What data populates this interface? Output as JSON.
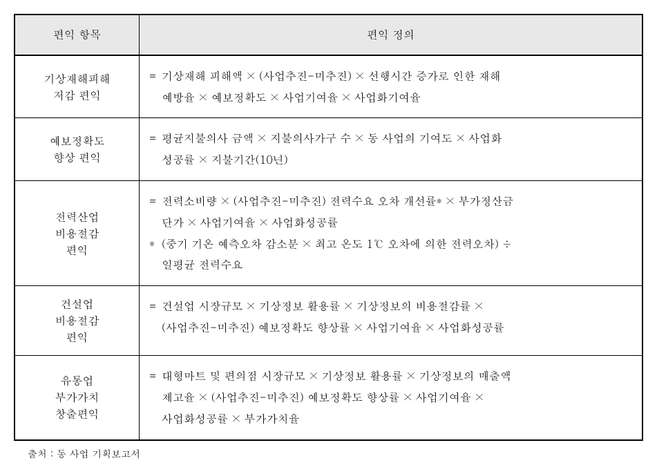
{
  "table": {
    "header": {
      "col1": "편익 항목",
      "col2": "편익 정의"
    },
    "rows": [
      {
        "label_line1": "기상재해피해",
        "label_line2": "저감 편익",
        "def_lines": [
          {
            "prefix": "=",
            "text": "기상재해 피해액 ×  (사업추진-미추진) × 선행시간 증가로 인한 재해"
          },
          {
            "prefix": "",
            "text": "예방율  × 예보정확도 × 사업기여율 × 사업화기여율"
          }
        ]
      },
      {
        "label_line1": "예보정확도",
        "label_line2": "향상 편익",
        "def_lines": [
          {
            "prefix": "=",
            "text": "평균지불의사 금액 × 지불의사가구 수 × 동 사업의 기여도 × 사업화"
          },
          {
            "prefix": "",
            "text": "성공률 × 지불기간(10년)"
          }
        ]
      },
      {
        "label_line1": "전력산업",
        "label_line2": "비용절감",
        "label_line3": "편익",
        "def_lines": [
          {
            "prefix": "=",
            "text": "전력소비량 ×  (사업추진-미추진) 전력수요 오차 개선률* × 부가정산금"
          },
          {
            "prefix": "",
            "text": "단가 × 사업기여율 × 사업화성공률"
          },
          {
            "prefix": "*",
            "text": "(중기 기온 예측오차 감소분 × 최고 온도 1℃ 오차에 의한 전력오차) ÷"
          },
          {
            "prefix": "",
            "text": "일평균 전력수요"
          }
        ]
      },
      {
        "label_line1": "건설업",
        "label_line2": "비용절감",
        "label_line3": "편익",
        "def_lines": [
          {
            "prefix": "=",
            "text": "건설업 시장규모 × 기상정보 활용률 × 기상정보의 비용절감률   ×"
          },
          {
            "prefix": "",
            "text": "(사업추진-미추진) 예보정확도 향상률  × 사업기여율 × 사업화성공률"
          }
        ]
      },
      {
        "label_line1": "유통업",
        "label_line2": "부가가치",
        "label_line3": "창출편익",
        "def_lines": [
          {
            "prefix": "=",
            "text": "대형마트 및 편의점 시장규모 × 기상정보 활용률 × 기상정보의 매출액"
          },
          {
            "prefix": "",
            "text": "제고율 × (사업추진-미추진) 예보정확도 향상률 × 사업기여율 ×"
          },
          {
            "prefix": "",
            "text": "사업화성공률 × 부가가치율"
          }
        ]
      }
    ]
  },
  "source": "출처 : 동 사업 기획보고서",
  "style": {
    "border_color": "#000000",
    "header_bg": "#e8e8e8",
    "body_bg": "#ffffff",
    "font_size": 16,
    "source_font_size": 14,
    "col_left_width": 180
  }
}
